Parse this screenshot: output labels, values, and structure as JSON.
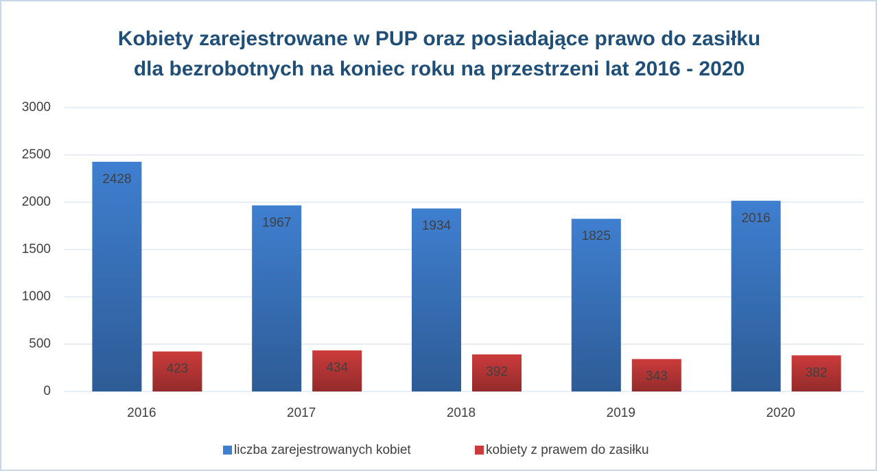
{
  "chart_data": {
    "type": "bar",
    "title": [
      "Kobiety zarejestrowane w PUP oraz posiadające prawo do zasiłku",
      "dla bezrobotnych na koniec roku na przestrzeni lat 2016 - 2020"
    ],
    "categories": [
      "2016",
      "2017",
      "2018",
      "2019",
      "2020"
    ],
    "series": [
      {
        "name": "liczba zarejestrowanych kobiet",
        "color": "#3f7fd0",
        "values": [
          2428,
          1967,
          1934,
          1825,
          2016
        ]
      },
      {
        "name": "kobiety z prawem do zasiłku",
        "color": "#cc3b3b",
        "values": [
          423,
          434,
          392,
          343,
          382
        ]
      }
    ],
    "ylim": [
      0,
      3000
    ],
    "yticks": [
      0,
      500,
      1000,
      1500,
      2000,
      2500,
      3000
    ],
    "grid": true,
    "legend": "bottom"
  }
}
